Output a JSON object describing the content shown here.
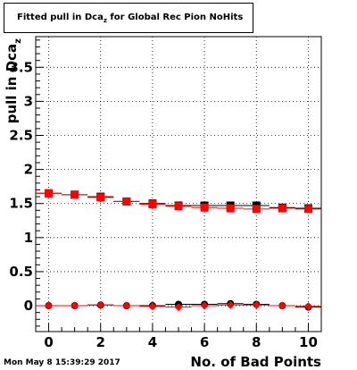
{
  "title": {
    "prefix": "Fitted pull in Dca",
    "subscript": "z",
    "suffix": " for Global Rec Pion NoHits"
  },
  "footer": {
    "timestamp": "Mon May  8 15:39:29 2017"
  },
  "colors": {
    "black_series": "#000000",
    "red_series": "#ff0000"
  },
  "chart_data": {
    "type": "scatter",
    "title": "Fitted pull in Dca_z for Global Rec Pion NoHits",
    "xlabel": "No. of Bad Points",
    "ylabel": "pull in Dca_z",
    "xlim": [
      -0.5,
      10.5
    ],
    "ylim": [
      -0.38,
      3.95
    ],
    "x_ticks": [
      "0",
      "2",
      "4",
      "6",
      "8",
      "10"
    ],
    "y_ticks": [
      "0",
      "0.5",
      "1",
      "1.5",
      "2",
      "2.5",
      "3",
      "3.5"
    ],
    "grid": true,
    "series": [
      {
        "marker": "square",
        "color": "#000000",
        "points": [
          [
            0,
            1.65
          ],
          [
            1,
            1.63
          ],
          [
            2,
            1.6
          ],
          [
            3,
            1.53
          ],
          [
            4,
            1.5
          ],
          [
            5,
            1.47
          ],
          [
            6,
            1.47
          ],
          [
            7,
            1.47
          ],
          [
            8,
            1.47
          ],
          [
            9,
            1.44
          ],
          [
            10,
            1.43
          ]
        ]
      },
      {
        "marker": "square",
        "color": "#ff0000",
        "points": [
          [
            0,
            1.65
          ],
          [
            1,
            1.63
          ],
          [
            2,
            1.59
          ],
          [
            3,
            1.53
          ],
          [
            4,
            1.49
          ],
          [
            5,
            1.46
          ],
          [
            6,
            1.44
          ],
          [
            7,
            1.43
          ],
          [
            8,
            1.42
          ],
          [
            9,
            1.43
          ],
          [
            10,
            1.42
          ]
        ]
      },
      {
        "marker": "circle",
        "color": "#000000",
        "points": [
          [
            0,
            0.0
          ],
          [
            1,
            0.0
          ],
          [
            2,
            0.01
          ],
          [
            3,
            0.0
          ],
          [
            4,
            0.0
          ],
          [
            5,
            0.02
          ],
          [
            6,
            0.02
          ],
          [
            7,
            0.03
          ],
          [
            8,
            0.02
          ],
          [
            9,
            0.0
          ],
          [
            10,
            -0.02
          ]
        ]
      },
      {
        "marker": "diamond",
        "color": "#ff0000",
        "points": [
          [
            0,
            0.0
          ],
          [
            1,
            0.0
          ],
          [
            2,
            0.01
          ],
          [
            3,
            0.0
          ],
          [
            4,
            -0.01
          ],
          [
            5,
            -0.02
          ],
          [
            6,
            0.0
          ],
          [
            7,
            0.01
          ],
          [
            8,
            0.01
          ],
          [
            9,
            0.0
          ],
          [
            10,
            -0.01
          ]
        ]
      }
    ]
  }
}
